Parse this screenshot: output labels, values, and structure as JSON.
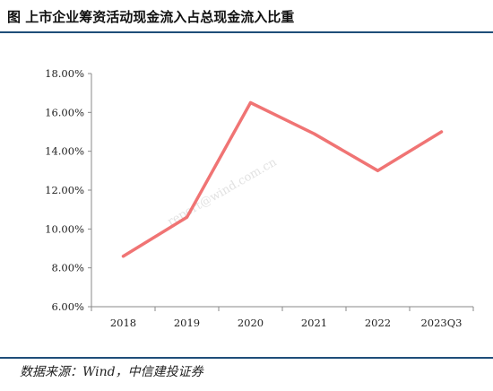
{
  "title": "图  上市企业筹资活动现金流入占总现金流入比重",
  "source": "数据来源：Wind，中信建投证券",
  "watermark": "report@wind.com.cn",
  "colors": {
    "line": "#f07474",
    "rule": "#1f4e79",
    "axis": "#8a8a8a"
  },
  "chart_data": {
    "type": "line",
    "title": "上市企业筹资活动现金流入占总现金流入比重",
    "categories": [
      "2018",
      "2019",
      "2020",
      "2021",
      "2022",
      "2023Q3"
    ],
    "series": [
      {
        "values": [
          8.6,
          10.6,
          16.5,
          14.9,
          13.0,
          15.0
        ]
      }
    ],
    "y_ticks": [
      "6.00%",
      "8.00%",
      "10.00%",
      "12.00%",
      "14.00%",
      "16.00%",
      "18.00%"
    ],
    "ylim": [
      6,
      18
    ],
    "grid": false,
    "legend": "none"
  }
}
